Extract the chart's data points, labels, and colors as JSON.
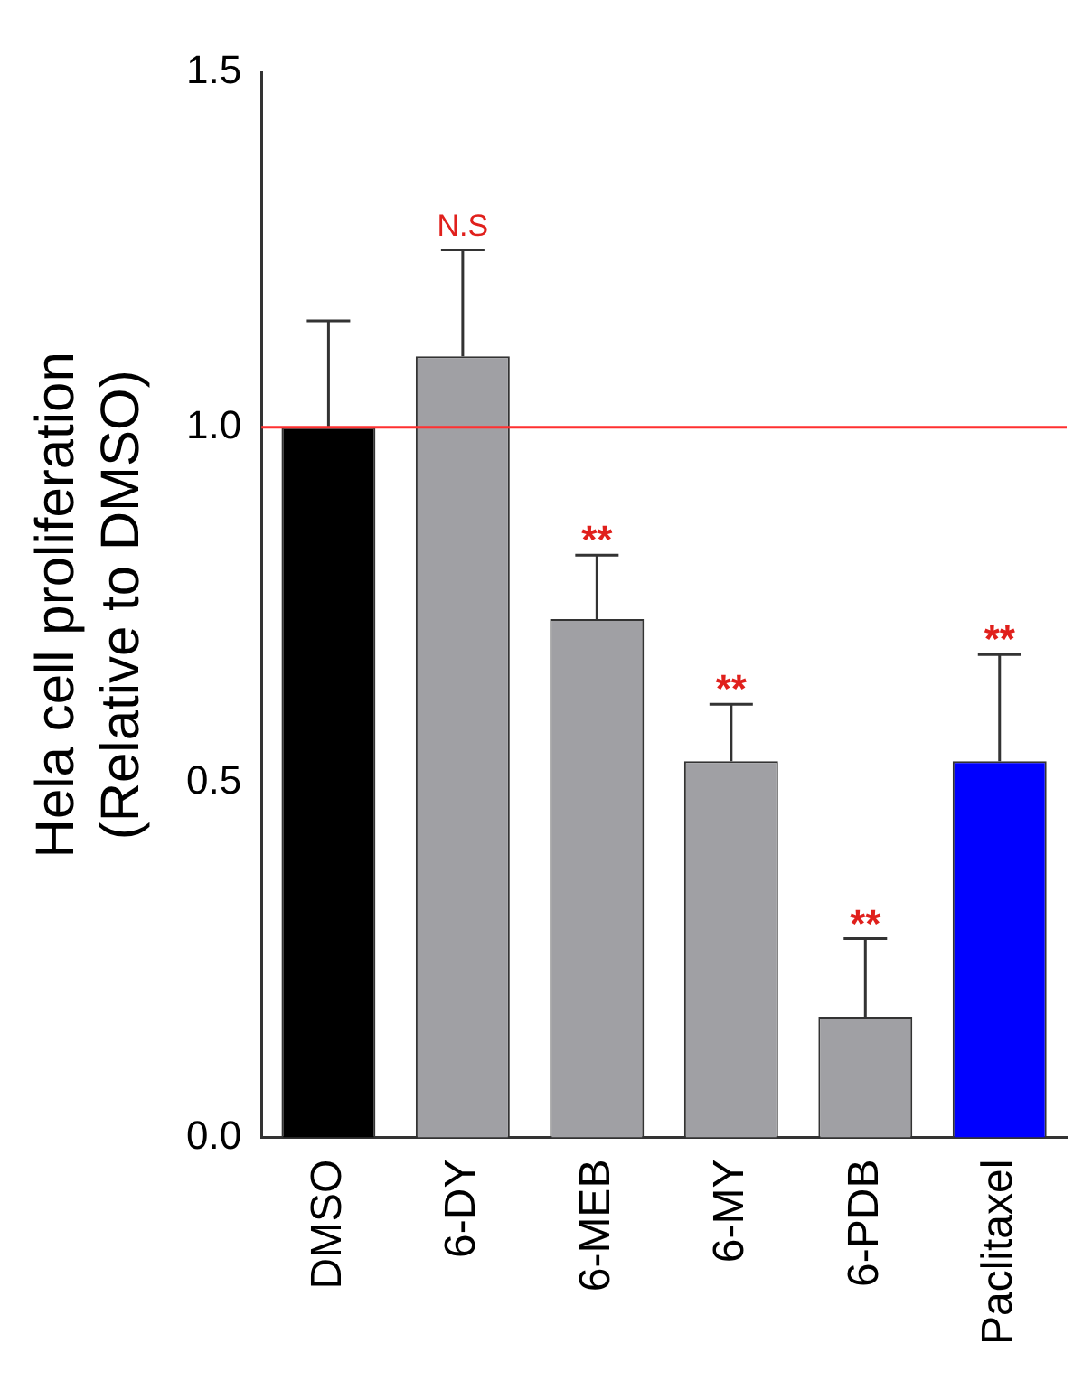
{
  "chart_data": {
    "type": "bar",
    "ylabel": "Hela cell proliferation\n(Relative to DMSO)",
    "categories": [
      "DMSO",
      "6-DY",
      "6-MEB",
      "6-MY",
      "6-PDB",
      "Paclitaxel"
    ],
    "values": [
      1.0,
      1.1,
      0.73,
      0.53,
      0.17,
      0.53
    ],
    "errors": [
      0.15,
      0.15,
      0.09,
      0.08,
      0.11,
      0.15
    ],
    "colors": [
      "#000000",
      "#a0a0a4",
      "#a0a0a4",
      "#a0a0a4",
      "#a0a0a4",
      "#0000ff"
    ],
    "ylim": [
      0,
      1.5
    ],
    "yticks": [
      {
        "value": 0,
        "label": "0.0"
      },
      {
        "value": 0.5,
        "label": "0.5"
      },
      {
        "value": 1,
        "label": "1.0"
      },
      {
        "value": 1.5,
        "label": "1.5"
      }
    ],
    "grid": false,
    "legend": false,
    "ref_lines": [
      {
        "axis": "y",
        "value": 1,
        "color": "#ff3030"
      }
    ],
    "annotations": [
      {
        "text": "N.S",
        "x": "6-DY",
        "y": 1.25
      },
      {
        "text": "**",
        "x": "6-MEB",
        "y": 0.82
      },
      {
        "text": "**",
        "x": "6-MY",
        "y": 0.61
      },
      {
        "text": "**",
        "x": "6-PDB",
        "y": 0.28
      },
      {
        "text": "**",
        "x": "Paclitaxel",
        "y": 0.68
      }
    ]
  }
}
